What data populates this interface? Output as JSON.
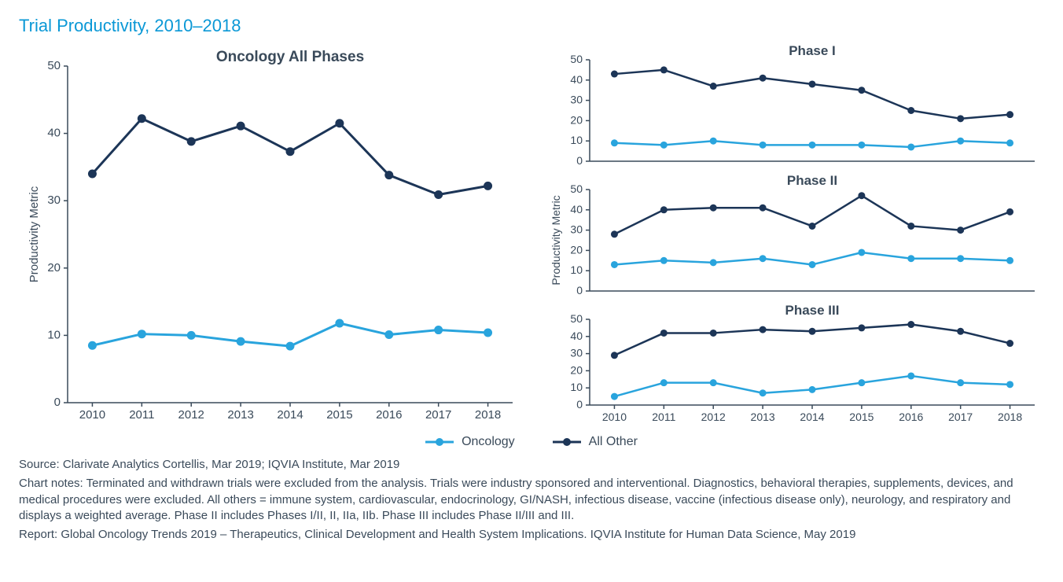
{
  "title": "Trial Productivity, 2010–2018",
  "colors": {
    "oncology": "#29a4dd",
    "all_other": "#1c3557",
    "axis": "#3a4a5a",
    "text": "#3a4a5a",
    "title_text": "#0a98d6",
    "bg": "#ffffff"
  },
  "years": [
    2010,
    2011,
    2012,
    2013,
    2014,
    2015,
    2016,
    2017,
    2018
  ],
  "y_axis_label": "Productivity Metric",
  "main_chart": {
    "subtitle": "Oncology All Phases",
    "ylim": [
      0,
      50
    ],
    "yticks": [
      0,
      10,
      20,
      30,
      40,
      50
    ],
    "oncology": [
      8.5,
      10.2,
      10.0,
      9.1,
      8.4,
      11.8,
      10.1,
      10.8,
      10.4
    ],
    "all_other": [
      34.0,
      42.2,
      38.8,
      41.1,
      37.3,
      41.5,
      33.8,
      30.9,
      32.2
    ],
    "title_fontsize": 19,
    "tick_fontsize": 15,
    "line_width": 3,
    "marker_radius": 5.5
  },
  "small_charts": [
    {
      "subtitle": "Phase I",
      "ylim": [
        0,
        50
      ],
      "yticks": [
        0,
        10,
        20,
        30,
        40,
        50
      ],
      "oncology": [
        9,
        8,
        10,
        8,
        8,
        8,
        7,
        10,
        9
      ],
      "all_other": [
        43,
        45,
        37,
        41,
        38,
        35,
        25,
        21,
        23
      ]
    },
    {
      "subtitle": "Phase II",
      "ylim": [
        0,
        50
      ],
      "yticks": [
        0,
        10,
        20,
        30,
        40,
        50
      ],
      "oncology": [
        13,
        15,
        14,
        16,
        13,
        19,
        16,
        16,
        15
      ],
      "all_other": [
        28,
        40,
        41,
        41,
        32,
        47,
        32,
        30,
        39
      ]
    },
    {
      "subtitle": "Phase III",
      "ylim": [
        0,
        50
      ],
      "yticks": [
        0,
        10,
        20,
        30,
        40,
        50
      ],
      "oncology": [
        5,
        13,
        13,
        7,
        9,
        13,
        17,
        13,
        12
      ],
      "all_other": [
        29,
        42,
        42,
        44,
        43,
        45,
        47,
        43,
        36
      ]
    }
  ],
  "small_chart_style": {
    "title_fontsize": 17,
    "tick_fontsize": 14,
    "line_width": 2.5,
    "marker_radius": 4.5
  },
  "legend": {
    "oncology": "Oncology",
    "all_other": "All Other"
  },
  "footer": {
    "source": "Source: Clarivate Analytics Cortellis, Mar 2019; IQVIA Institute, Mar 2019",
    "notes": "Chart notes: Terminated and withdrawn trials were excluded from the analysis. Trials were industry sponsored and interventional. Diagnostics, behavioral therapies, supplements, devices, and medical procedures were excluded. All others = immune system, cardiovascular, endocrinology, GI/NASH, infectious disease, vaccine (infectious disease only), neurology, and respiratory and displays a weighted average. Phase II includes Phases I/II, II, IIa, IIb. Phase III includes Phase II/III and III.",
    "report": "Report: Global Oncology Trends 2019 – Therapeutics, Clinical Development and Health System Implications. IQVIA Institute for Human Data Science, May 2019"
  }
}
